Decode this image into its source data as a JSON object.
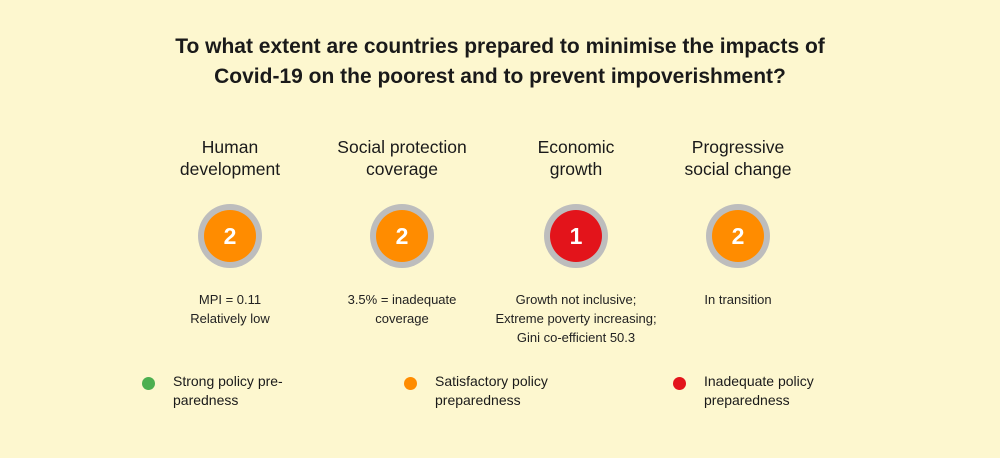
{
  "title_lines": [
    "To what extent are countries prepared to minimise the impacts of",
    "Covid-19 on the poorest and to prevent impoverishment?"
  ],
  "colors": {
    "background": "#fdf7cf",
    "strong": "#4caf50",
    "satisfactory": "#ff8c00",
    "inadequate": "#e3141b",
    "ring": "#bdbdbd"
  },
  "columns": [
    {
      "title_lines": [
        "Human",
        "development"
      ],
      "score": "2",
      "level": "satisfactory",
      "desc_lines": [
        "MPI = 0.11",
        "Relatively low"
      ]
    },
    {
      "title_lines": [
        "Social protection",
        "coverage"
      ],
      "score": "2",
      "level": "satisfactory",
      "desc_lines": [
        "3.5% = inadequate",
        "coverage"
      ]
    },
    {
      "title_lines": [
        "Economic",
        "growth"
      ],
      "score": "1",
      "level": "inadequate",
      "desc_lines": [
        "Growth not inclusive;",
        "Extreme poverty increasing;",
        "Gini co-efficient 50.3"
      ]
    },
    {
      "title_lines": [
        "Progressive",
        "social change"
      ],
      "score": "2",
      "level": "satisfactory",
      "desc_lines": [
        "In transition"
      ]
    }
  ],
  "legend": [
    {
      "level": "strong",
      "label_lines": [
        "Strong policy pre-",
        "paredness"
      ]
    },
    {
      "level": "satisfactory",
      "label_lines": [
        "Satisfactory policy",
        "preparedness"
      ]
    },
    {
      "level": "inadequate",
      "label_lines": [
        "Inadequate policy",
        "preparedness"
      ]
    }
  ]
}
